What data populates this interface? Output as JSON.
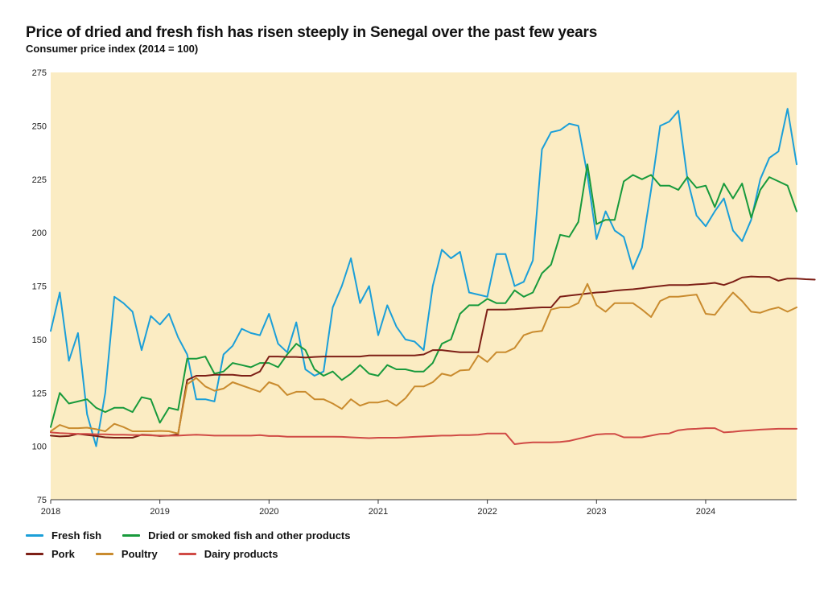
{
  "title": "Price of dried and fresh fish has risen steeply in Senegal over the past few years",
  "subtitle": "Consumer price index (2014 = 100)",
  "chart_data": {
    "type": "line",
    "title": "Price of dried and fresh fish has risen steeply in Senegal over the past few years",
    "subtitle": "Consumer price index (2014 = 100)",
    "xlabel": "",
    "ylabel": "",
    "x_start": "2018-01",
    "x_end": "2024-11",
    "xlim": [
      "2018-01",
      "2024-11"
    ],
    "x_ticks": [
      "2018",
      "2019",
      "2020",
      "2021",
      "2022",
      "2023",
      "2024"
    ],
    "ylim": [
      75,
      275
    ],
    "y_ticks": [
      75,
      100,
      125,
      150,
      175,
      200,
      225,
      250,
      275
    ],
    "grid": false,
    "background": "#fbecc3",
    "legend_position": "bottom-left",
    "series": [
      {
        "name": "Fresh fish",
        "color": "#1b9fd8",
        "values": [
          154,
          172,
          140,
          153,
          115,
          100,
          125,
          170,
          167,
          163,
          145,
          161,
          157,
          162,
          151,
          143,
          122,
          122,
          121,
          143,
          147,
          155,
          153,
          152,
          162,
          148,
          144,
          158,
          136,
          133,
          135,
          165,
          175,
          188,
          167,
          175,
          152,
          166,
          156,
          150,
          149,
          145,
          175,
          192,
          188,
          191,
          172,
          171,
          170,
          190,
          190,
          175,
          177,
          187,
          239,
          247,
          248,
          251,
          250,
          227,
          197,
          210,
          201,
          198,
          183,
          193,
          220,
          250,
          252,
          257,
          225,
          208,
          203,
          210,
          216,
          201,
          196,
          206,
          225,
          235,
          238,
          258,
          232
        ]
      },
      {
        "name": "Dried or smoked fish and other products",
        "color": "#189a3c",
        "values": [
          109,
          125,
          120,
          121,
          122,
          118,
          116,
          118,
          118,
          116,
          123,
          122,
          111,
          118,
          117,
          141,
          141,
          142,
          134,
          135,
          139,
          138,
          137,
          139,
          139,
          137,
          143,
          148,
          145,
          136,
          133,
          135,
          131,
          134,
          138,
          134,
          133,
          138,
          136,
          136,
          135,
          135,
          139,
          148,
          150,
          162,
          166,
          166,
          169,
          167,
          167,
          173,
          170,
          172,
          181,
          185,
          199,
          198,
          205,
          232,
          204,
          206,
          206,
          224,
          227,
          225,
          227,
          222,
          222,
          220,
          226,
          221,
          222,
          212,
          223,
          216,
          223,
          207,
          220,
          226,
          224,
          222,
          210
        ]
      },
      {
        "name": "Pork",
        "color": "#7d1f16",
        "values": [
          105,
          104.6,
          104.8,
          105.8,
          105.3,
          104.8,
          104.2,
          104,
          104,
          104,
          105.4,
          105.2,
          104.8,
          105,
          105.6,
          131,
          133,
          133,
          133.5,
          133.5,
          133.5,
          133,
          133,
          135,
          142,
          142,
          141.8,
          141.8,
          141.5,
          141.8,
          142,
          142,
          142,
          142,
          142,
          142.5,
          142.5,
          142.5,
          142.5,
          142.5,
          142.5,
          143,
          145,
          145,
          144.5,
          144,
          144,
          144,
          164,
          164,
          164,
          164.2,
          164.5,
          164.8,
          165,
          165,
          170,
          170.5,
          171,
          171.5,
          172,
          172.2,
          172.8,
          173.2,
          173.5,
          174,
          174.5,
          175,
          175.5,
          175.5,
          175.5,
          175.8,
          176,
          176.5,
          175.5,
          177,
          179,
          179.5,
          179.3,
          179.3,
          177.5,
          178.5,
          178.5,
          178.2,
          178
        ]
      },
      {
        "name": "Poultry",
        "color": "#c98b2e",
        "values": [
          107,
          110,
          108.5,
          108.5,
          108.7,
          108,
          107,
          110.5,
          109,
          107,
          107,
          107,
          107.2,
          107,
          106,
          129,
          132,
          128,
          126,
          127,
          130,
          128.5,
          127,
          125.5,
          130,
          128.5,
          124,
          125.5,
          125.5,
          122,
          122,
          120,
          117.5,
          122,
          119,
          120.5,
          120.5,
          121.5,
          119,
          122.5,
          128,
          128,
          130,
          134,
          133,
          135.5,
          135.8,
          142.5,
          139.5,
          144,
          144,
          146,
          152,
          153.5,
          154,
          164,
          165,
          165,
          167,
          176,
          166,
          163,
          167,
          167,
          167,
          164,
          160.5,
          168,
          170,
          170,
          170.5,
          171,
          162,
          161.5,
          167,
          172,
          168,
          163,
          162.5,
          164,
          165,
          163,
          165
        ]
      },
      {
        "name": "Dairy products",
        "color": "#d04a45",
        "values": [
          106.5,
          106.2,
          106,
          105.8,
          105.8,
          105.6,
          105.6,
          105.4,
          105.4,
          105.3,
          105.2,
          105.1,
          105,
          105,
          105,
          105.2,
          105.4,
          105.2,
          105,
          105,
          105,
          105,
          105,
          105.2,
          104.8,
          104.8,
          104.5,
          104.5,
          104.5,
          104.5,
          104.5,
          104.5,
          104.4,
          104.2,
          104,
          103.8,
          104,
          104,
          104,
          104.2,
          104.4,
          104.6,
          104.8,
          105,
          105,
          105.2,
          105.2,
          105.4,
          106,
          106,
          106,
          101,
          101.5,
          101.8,
          101.8,
          101.8,
          102,
          102.5,
          103.5,
          104.5,
          105.5,
          105.8,
          105.8,
          104.2,
          104.2,
          104.2,
          105,
          105.8,
          106,
          107.5,
          108,
          108.2,
          108.5,
          108.5,
          106.5,
          106.8,
          107.2,
          107.5,
          107.8,
          108,
          108.2,
          108.2,
          108.2
        ]
      }
    ]
  }
}
